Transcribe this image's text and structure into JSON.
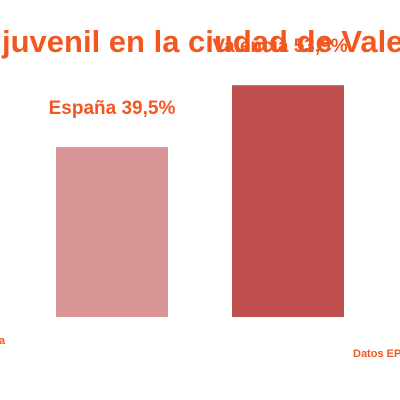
{
  "chart_data": {
    "type": "bar",
    "title": "juvenil en la ciudad de Vale",
    "categories": [
      "España",
      "Valencia"
    ],
    "values": [
      39.5,
      53.9
    ],
    "data_labels": [
      "España 39,5%",
      "Valencia 53,9%"
    ],
    "colors": [
      "#d99595",
      "#c0504d"
    ],
    "ylim": [
      0,
      60
    ],
    "xlabel": "",
    "ylabel": "",
    "grid": false
  },
  "footer": {
    "left_fragment": "a",
    "source": "Datos EP"
  },
  "colors": {
    "accent": "#f2571f"
  }
}
